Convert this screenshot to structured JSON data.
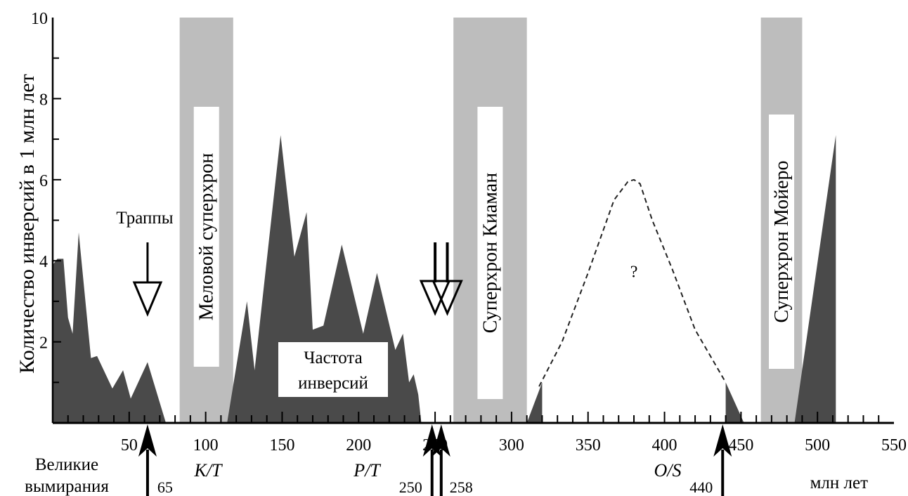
{
  "chart_data": {
    "type": "area",
    "ylabel": "Количество инверсий в 1 млн лет",
    "xlabel": "млн лет",
    "xlim": [
      0,
      550
    ],
    "ylim": [
      0,
      10
    ],
    "x_ticks": [
      50,
      100,
      150,
      200,
      250,
      300,
      350,
      400,
      450,
      500,
      550
    ],
    "y_ticks": [
      2,
      4,
      6,
      8,
      10
    ],
    "series": [
      {
        "values": [
          [
            0,
            3.9
          ],
          [
            3,
            4.05
          ],
          [
            7,
            4.05
          ],
          [
            10,
            2.6
          ],
          [
            13,
            2.2
          ],
          [
            17,
            4.7
          ],
          [
            25,
            1.6
          ],
          [
            29,
            1.65
          ],
          [
            39,
            0.85
          ],
          [
            46,
            1.3
          ],
          [
            51,
            0.6
          ],
          [
            62,
            1.5
          ],
          [
            74,
            0
          ]
        ]
      },
      {
        "values": [
          [
            114,
            0
          ],
          [
            127,
            3.0
          ],
          [
            132,
            1.3
          ],
          [
            149,
            7.1
          ],
          [
            158,
            4.1
          ],
          [
            166,
            5.2
          ],
          [
            170,
            2.3
          ],
          [
            177,
            2.4
          ],
          [
            189,
            4.4
          ],
          [
            203,
            2.2
          ],
          [
            212,
            3.7
          ],
          [
            224,
            1.8
          ],
          [
            229,
            2.2
          ],
          [
            233,
            1.0
          ],
          [
            236,
            1.2
          ],
          [
            239,
            0.7
          ],
          [
            241,
            0
          ]
        ]
      },
      {
        "values": [
          [
            310,
            0
          ],
          [
            320,
            1.0
          ],
          [
            320,
            0
          ]
        ]
      },
      {
        "values": [
          [
            440,
            0
          ],
          [
            440,
            1.0
          ],
          [
            452,
            0
          ]
        ]
      },
      {
        "values": [
          [
            485,
            0
          ],
          [
            512,
            7.1
          ],
          [
            512,
            0
          ]
        ]
      }
    ],
    "dashed_curve": [
      [
        318,
        0.9
      ],
      [
        333,
        2.0
      ],
      [
        350,
        3.7
      ],
      [
        367,
        5.5
      ],
      [
        376,
        5.95
      ],
      [
        380,
        6.0
      ],
      [
        384,
        5.9
      ],
      [
        392,
        5.0
      ],
      [
        405,
        3.8
      ],
      [
        420,
        2.3
      ],
      [
        440,
        1.0
      ]
    ],
    "question_label": "?",
    "superchrons": [
      {
        "name": "Меловой суперхрон",
        "start": 83,
        "end": 118
      },
      {
        "name": "Суперхрон Киаман",
        "start": 262,
        "end": 310
      },
      {
        "name": "Суперхрон Мойеро",
        "start": 463,
        "end": 490
      }
    ],
    "annotations": {
      "traps_label": "Траппы",
      "traps_arrows": [
        62,
        250,
        258
      ],
      "frequency_label": [
        "Частота",
        "инверсий"
      ],
      "extinctions_label": [
        "Великие",
        "вымирания"
      ],
      "extinctions": [
        {
          "age": 62,
          "number": "65",
          "label": "K/T"
        },
        {
          "age": 248,
          "number": "250",
          "label": "P/T"
        },
        {
          "age": 254,
          "number": "258",
          "label": ""
        },
        {
          "age": 438,
          "number": "440",
          "label": "O/S"
        }
      ]
    },
    "colors": {
      "area": "#4a4a4a",
      "superchron": "#bdbdbd",
      "axis": "#000000"
    }
  }
}
